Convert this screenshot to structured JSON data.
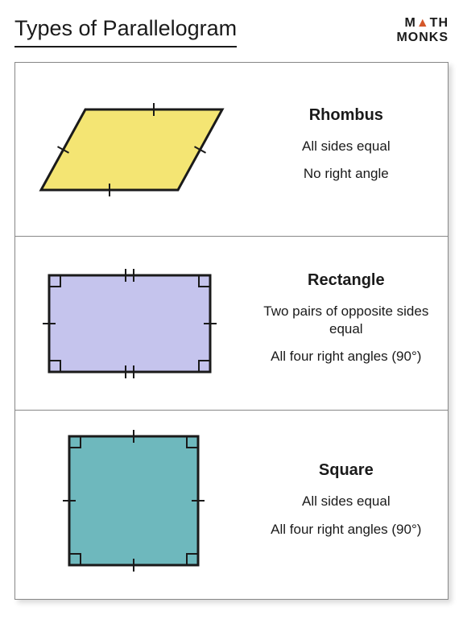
{
  "title": "Types of Parallelogram",
  "logo": {
    "text1": "M",
    "tri": "▲",
    "text2": "TH",
    "text3": "MONKS"
  },
  "shapes": [
    {
      "name": "Rhombus",
      "props": [
        "All sides equal",
        "No right angle"
      ],
      "fill": "#f4e573",
      "stroke": "#1a1a1a",
      "stroke_width": 3,
      "type": "rhombus",
      "tick_style": "single",
      "right_angles": false
    },
    {
      "name": "Rectangle",
      "props": [
        "Two pairs of opposite sides equal",
        "All four right angles (90°)"
      ],
      "fill": "#c5c4ed",
      "stroke": "#1a1a1a",
      "stroke_width": 3,
      "type": "rectangle",
      "tick_style": "double_single",
      "right_angles": true
    },
    {
      "name": "Square",
      "props": [
        "All sides equal",
        "All four right angles (90°)"
      ],
      "fill": "#6eb8bd",
      "stroke": "#1a1a1a",
      "stroke_width": 3,
      "type": "square",
      "tick_style": "single",
      "right_angles": true
    }
  ]
}
